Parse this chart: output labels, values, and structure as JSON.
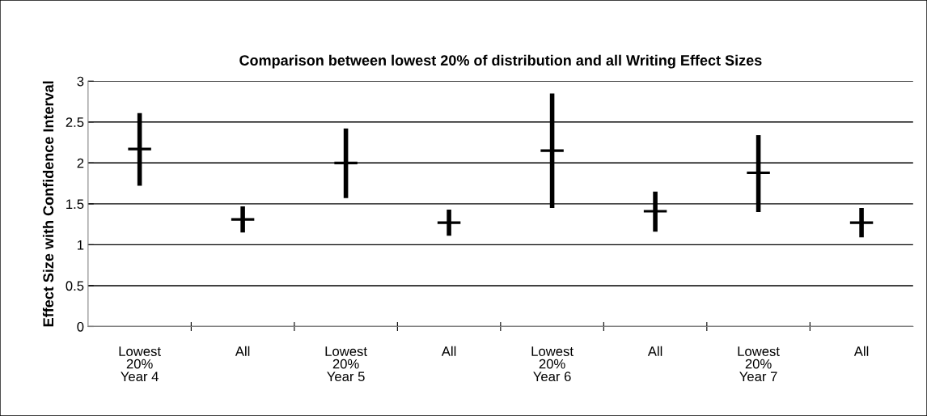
{
  "chart_data": {
    "type": "scatter",
    "title": "Comparison between lowest 20% of distribution and all Writing Effect Sizes",
    "ylabel": "Effect Size with Confidence Interval",
    "categories": [
      "Lowest\n20%\nYear 4",
      "All",
      "Lowest\n20%\nYear 5",
      "All",
      "Lowest\n20%\nYear 6",
      "All",
      "Lowest\n20%\nYear 7",
      "All"
    ],
    "values": [
      2.17,
      1.31,
      2.0,
      1.27,
      2.15,
      1.41,
      1.88,
      1.27
    ],
    "errors": [
      [
        1.72,
        2.61
      ],
      [
        1.15,
        1.47
      ],
      [
        1.57,
        2.42
      ],
      [
        1.11,
        1.43
      ],
      [
        1.45,
        2.85
      ],
      [
        1.16,
        1.65
      ],
      [
        1.4,
        2.34
      ],
      [
        1.09,
        1.45
      ]
    ],
    "color": "#000000",
    "marker": "cross",
    "ylim": [
      0,
      3
    ],
    "yticks": [
      0,
      0.5,
      1,
      1.5,
      2,
      2.5,
      3
    ],
    "grid": "y"
  }
}
